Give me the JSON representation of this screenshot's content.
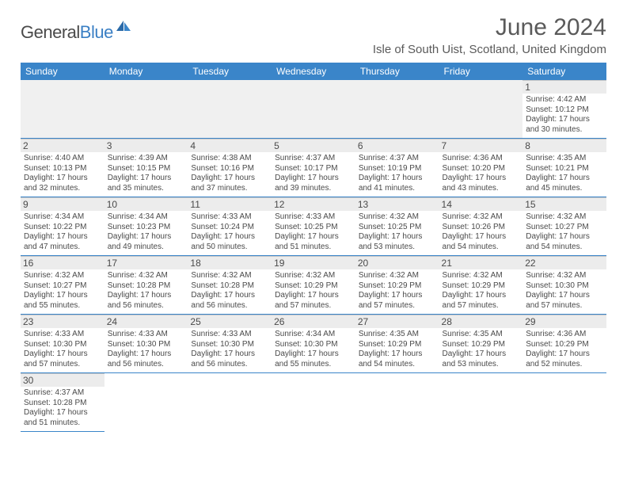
{
  "logo": {
    "text1": "General",
    "text2": "Blue"
  },
  "title": "June 2024",
  "location": "Isle of South Uist, Scotland, United Kingdom",
  "colors": {
    "header_bg": "#3a85c9",
    "header_text": "#ffffff",
    "border": "#b8b8b8",
    "row_divider": "#3a85c9",
    "daynum_bg": "#ececec",
    "text": "#4a4a4a",
    "logo_gray": "#4a4a4a",
    "logo_blue": "#3a7fc4"
  },
  "day_names": [
    "Sunday",
    "Monday",
    "Tuesday",
    "Wednesday",
    "Thursday",
    "Friday",
    "Saturday"
  ],
  "weeks": [
    [
      null,
      null,
      null,
      null,
      null,
      null,
      {
        "n": "1",
        "sr": "4:42 AM",
        "ss": "10:12 PM",
        "dh": "17",
        "dm": "30"
      }
    ],
    [
      {
        "n": "2",
        "sr": "4:40 AM",
        "ss": "10:13 PM",
        "dh": "17",
        "dm": "32"
      },
      {
        "n": "3",
        "sr": "4:39 AM",
        "ss": "10:15 PM",
        "dh": "17",
        "dm": "35"
      },
      {
        "n": "4",
        "sr": "4:38 AM",
        "ss": "10:16 PM",
        "dh": "17",
        "dm": "37"
      },
      {
        "n": "5",
        "sr": "4:37 AM",
        "ss": "10:17 PM",
        "dh": "17",
        "dm": "39"
      },
      {
        "n": "6",
        "sr": "4:37 AM",
        "ss": "10:19 PM",
        "dh": "17",
        "dm": "41"
      },
      {
        "n": "7",
        "sr": "4:36 AM",
        "ss": "10:20 PM",
        "dh": "17",
        "dm": "43"
      },
      {
        "n": "8",
        "sr": "4:35 AM",
        "ss": "10:21 PM",
        "dh": "17",
        "dm": "45"
      }
    ],
    [
      {
        "n": "9",
        "sr": "4:34 AM",
        "ss": "10:22 PM",
        "dh": "17",
        "dm": "47"
      },
      {
        "n": "10",
        "sr": "4:34 AM",
        "ss": "10:23 PM",
        "dh": "17",
        "dm": "49"
      },
      {
        "n": "11",
        "sr": "4:33 AM",
        "ss": "10:24 PM",
        "dh": "17",
        "dm": "50"
      },
      {
        "n": "12",
        "sr": "4:33 AM",
        "ss": "10:25 PM",
        "dh": "17",
        "dm": "51"
      },
      {
        "n": "13",
        "sr": "4:32 AM",
        "ss": "10:25 PM",
        "dh": "17",
        "dm": "53"
      },
      {
        "n": "14",
        "sr": "4:32 AM",
        "ss": "10:26 PM",
        "dh": "17",
        "dm": "54"
      },
      {
        "n": "15",
        "sr": "4:32 AM",
        "ss": "10:27 PM",
        "dh": "17",
        "dm": "54"
      }
    ],
    [
      {
        "n": "16",
        "sr": "4:32 AM",
        "ss": "10:27 PM",
        "dh": "17",
        "dm": "55"
      },
      {
        "n": "17",
        "sr": "4:32 AM",
        "ss": "10:28 PM",
        "dh": "17",
        "dm": "56"
      },
      {
        "n": "18",
        "sr": "4:32 AM",
        "ss": "10:28 PM",
        "dh": "17",
        "dm": "56"
      },
      {
        "n": "19",
        "sr": "4:32 AM",
        "ss": "10:29 PM",
        "dh": "17",
        "dm": "57"
      },
      {
        "n": "20",
        "sr": "4:32 AM",
        "ss": "10:29 PM",
        "dh": "17",
        "dm": "57"
      },
      {
        "n": "21",
        "sr": "4:32 AM",
        "ss": "10:29 PM",
        "dh": "17",
        "dm": "57"
      },
      {
        "n": "22",
        "sr": "4:32 AM",
        "ss": "10:30 PM",
        "dh": "17",
        "dm": "57"
      }
    ],
    [
      {
        "n": "23",
        "sr": "4:33 AM",
        "ss": "10:30 PM",
        "dh": "17",
        "dm": "57"
      },
      {
        "n": "24",
        "sr": "4:33 AM",
        "ss": "10:30 PM",
        "dh": "17",
        "dm": "56"
      },
      {
        "n": "25",
        "sr": "4:33 AM",
        "ss": "10:30 PM",
        "dh": "17",
        "dm": "56"
      },
      {
        "n": "26",
        "sr": "4:34 AM",
        "ss": "10:30 PM",
        "dh": "17",
        "dm": "55"
      },
      {
        "n": "27",
        "sr": "4:35 AM",
        "ss": "10:29 PM",
        "dh": "17",
        "dm": "54"
      },
      {
        "n": "28",
        "sr": "4:35 AM",
        "ss": "10:29 PM",
        "dh": "17",
        "dm": "53"
      },
      {
        "n": "29",
        "sr": "4:36 AM",
        "ss": "10:29 PM",
        "dh": "17",
        "dm": "52"
      }
    ],
    [
      {
        "n": "30",
        "sr": "4:37 AM",
        "ss": "10:28 PM",
        "dh": "17",
        "dm": "51"
      },
      null,
      null,
      null,
      null,
      null,
      null
    ]
  ],
  "labels": {
    "sunrise": "Sunrise:",
    "sunset": "Sunset:",
    "daylight": "Daylight:",
    "hours": "hours",
    "and": "and",
    "minutes": "minutes."
  }
}
